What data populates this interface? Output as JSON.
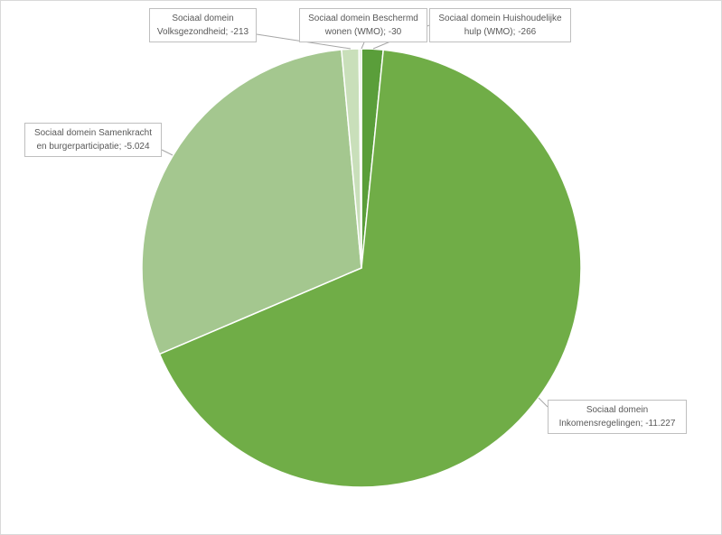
{
  "chart_data": {
    "type": "pie",
    "categories": [
      "Sociaal domein Huishoudelijke hulp (WMO)",
      "Sociaal domein Inkomensregelingen",
      "Sociaal domein Samenkracht en burgerparticipatie",
      "Sociaal domein Volksgezondheid",
      "Sociaal domein Beschermd wonen (WMO)"
    ],
    "values": [
      -266,
      -11227,
      -5024,
      -213,
      -30
    ],
    "value_labels": [
      "-266",
      "-11.227",
      "-5.024",
      "-213",
      "-30"
    ],
    "label_separator": "; ",
    "colors": [
      "#5a9e3a",
      "#70ad47",
      "#a4c78f",
      "#c9dfba",
      "#e3eedb"
    ],
    "show_legend": false
  }
}
